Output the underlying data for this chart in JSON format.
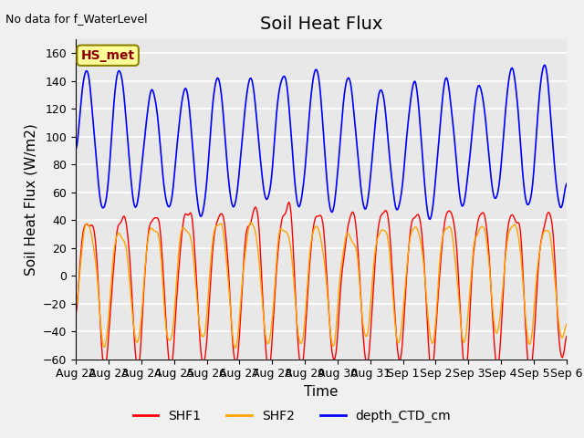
{
  "title": "Soil Heat Flux",
  "ylabel": "Soil Heat Flux (W/m2)",
  "xlabel": "Time",
  "top_left_text": "No data for f_WaterLevel",
  "station_label": "HS_met",
  "ylim": [
    -60,
    170
  ],
  "yticks": [
    -60,
    -40,
    -20,
    0,
    20,
    40,
    60,
    80,
    100,
    120,
    140,
    160
  ],
  "xtick_labels": [
    "Aug 22",
    "Aug 23",
    "Aug 24",
    "Aug 25",
    "Aug 26",
    "Aug 27",
    "Aug 28",
    "Aug 29",
    "Aug 30",
    "Aug 31",
    "Sep 1",
    "Sep 2",
    "Sep 3",
    "Sep 4",
    "Sep 5",
    "Sep 6"
  ],
  "background_color": "#e8e8e8",
  "plot_bg_color": "#e8e8e8",
  "shf1_color": "#ff0000",
  "shf2_color": "#ffa500",
  "depth_color": "#0000ff",
  "grid_color": "#ffffff",
  "legend_entries": [
    "SHF1",
    "SHF2",
    "depth_CTD_cm"
  ],
  "title_fontsize": 14,
  "label_fontsize": 11,
  "tick_fontsize": 9
}
